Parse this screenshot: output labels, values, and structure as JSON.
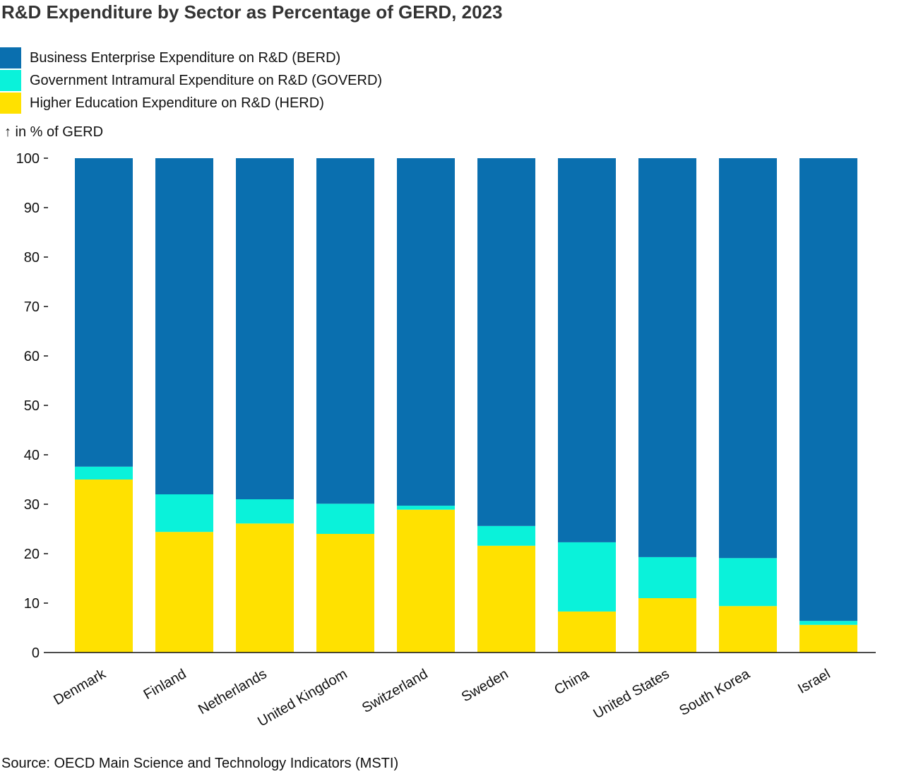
{
  "chart_data": {
    "type": "bar",
    "stacked": true,
    "title": "R&D Expenditure by Sector as Percentage of GERD, 2023",
    "ylabel": "↑ in % of GERD",
    "xlabel": "",
    "ylim": [
      0,
      100
    ],
    "yticks": [
      0,
      10,
      20,
      30,
      40,
      50,
      60,
      70,
      80,
      90,
      100
    ],
    "grid": false,
    "legend_position": "top-left",
    "categories": [
      "Denmark",
      "Finland",
      "Netherlands",
      "United Kingdom",
      "Switzerland",
      "Sweden",
      "China",
      "United States",
      "South Korea",
      "Israel"
    ],
    "series": [
      {
        "name": "Higher Education Expenditure on R&D (HERD)",
        "color": "#ffe100",
        "values": [
          35.0,
          24.4,
          26.1,
          24.0,
          28.9,
          21.6,
          8.3,
          11.0,
          9.4,
          5.6
        ]
      },
      {
        "name": "Government Intramural Expenditure on R&D (GOVERD)",
        "color": "#0af2da",
        "values": [
          2.6,
          7.6,
          4.9,
          6.1,
          0.8,
          4.0,
          14.0,
          8.3,
          9.7,
          0.8
        ]
      },
      {
        "name": "Business Enterprise Expenditure on R&D (BERD)",
        "color": "#0a6faf",
        "values": [
          62.4,
          68.0,
          69.0,
          69.9,
          70.3,
          74.4,
          77.7,
          80.7,
          80.9,
          93.6
        ]
      }
    ],
    "legend_order": [
      2,
      1,
      0
    ],
    "source": "Source: OECD Main Science and Technology Indicators (MSTI)"
  }
}
